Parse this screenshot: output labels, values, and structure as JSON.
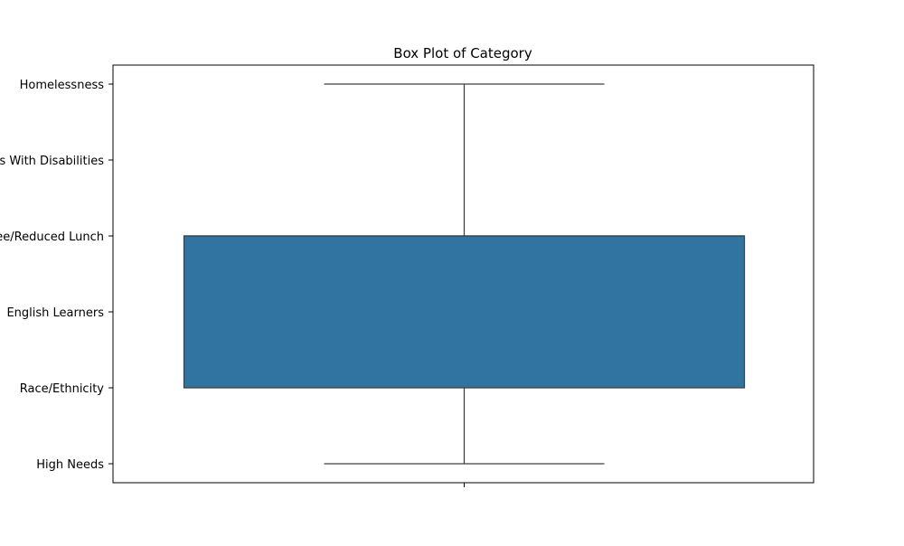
{
  "chart_data": {
    "type": "box",
    "title": "Box Plot of Category",
    "xlabel": "",
    "ylabel": "",
    "categories": [
      "High Needs",
      "Race/Ethnicity",
      "English Learners",
      "Free/Reduced Lunch",
      "Students With Disabilities",
      "Homelessness"
    ],
    "box": {
      "whisker_low": "High Needs",
      "q1": "Race/Ethnicity",
      "median": "Free/Reduced Lunch",
      "q3": "Free/Reduced Lunch",
      "whisker_high": "Homelessness"
    },
    "x_ticks": [
      ""
    ],
    "grid": false,
    "legend": "none",
    "colors": {
      "box_fill": "#3274a1",
      "line": "#3f3f3f",
      "axes": "#000000"
    }
  }
}
